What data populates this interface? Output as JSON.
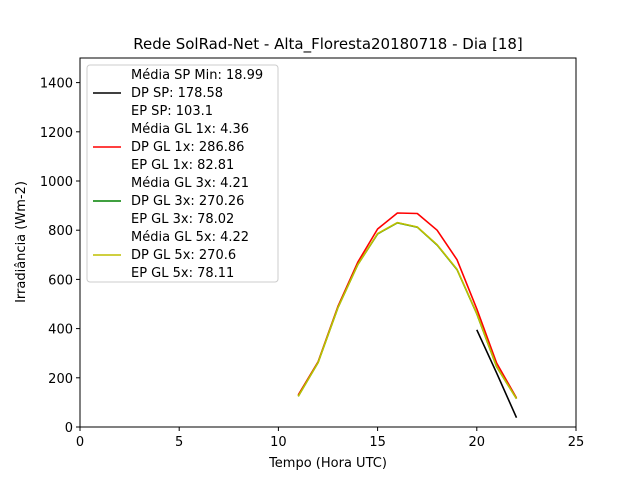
{
  "chart_data": {
    "type": "line",
    "title": "Rede SolRad-Net - Alta_Floresta20180718 - Dia [18]",
    "xlabel": "Tempo (Hora UTC)",
    "ylabel": "Irradiância (Wm-2)",
    "xlim": [
      0,
      25
    ],
    "ylim": [
      0,
      1500
    ],
    "xticks": [
      0,
      5,
      10,
      15,
      20,
      25
    ],
    "yticks": [
      0,
      200,
      400,
      600,
      800,
      1000,
      1200,
      1400
    ],
    "grid": false,
    "legend_position": "upper-left",
    "series": [
      {
        "legend_lines": [
          "Média SP Min: 18.99",
          "DP SP: 178.58",
          "EP SP: 103.1"
        ],
        "color": "#000000",
        "x": [
          20,
          21,
          22
        ],
        "y": [
          395,
          220,
          38
        ]
      },
      {
        "legend_lines": [
          "Média GL 1x: 4.36",
          "DP GL 1x: 286.86",
          "EP GL 1x: 82.81"
        ],
        "color": "#ff0000",
        "x": [
          11,
          12,
          13,
          14,
          15,
          16,
          17,
          18,
          19,
          20,
          21,
          22
        ],
        "y": [
          130,
          265,
          490,
          670,
          805,
          870,
          868,
          800,
          680,
          480,
          260,
          118
        ]
      },
      {
        "legend_lines": [
          "Média GL 3x: 4.21",
          "DP GL 3x: 270.26",
          "EP GL 3x: 78.02"
        ],
        "color": "#008000",
        "x": [
          11,
          12,
          13,
          14,
          15,
          16,
          17,
          18,
          19,
          20,
          21,
          22
        ],
        "y": [
          125,
          262,
          485,
          660,
          785,
          830,
          812,
          740,
          640,
          460,
          245,
          115
        ]
      },
      {
        "legend_lines": [
          "Média GL 5x: 4.22",
          "DP GL 5x: 270.6",
          "EP GL 5x: 78.11"
        ],
        "color": "#bfbf00",
        "x": [
          11,
          12,
          13,
          14,
          15,
          16,
          17,
          18,
          19,
          20,
          21,
          22
        ],
        "y": [
          125,
          262,
          485,
          660,
          786,
          831,
          813,
          741,
          641,
          461,
          246,
          115
        ]
      }
    ]
  }
}
